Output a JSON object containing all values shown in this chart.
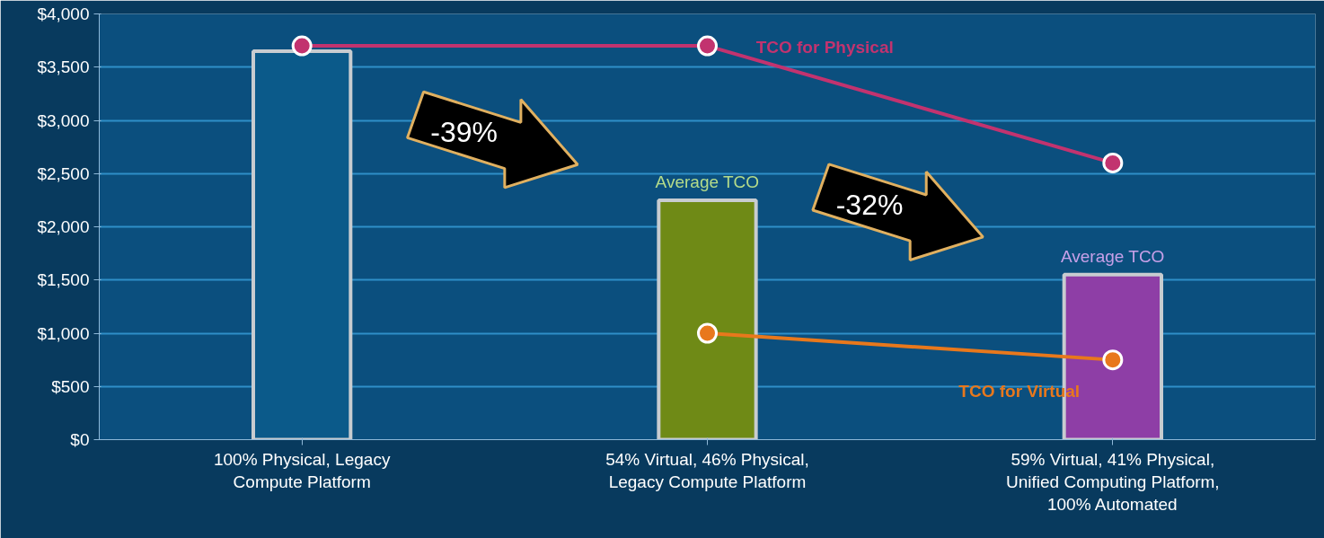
{
  "chart_data": {
    "type": "bar",
    "categories": [
      "100% Physical, Legacy\nCompute Platform",
      "54% Virtual, 46% Physical,\nLegacy Compute Platform",
      "59% Virtual, 41% Physical,\nUnified Computing Platform,\n100% Automated"
    ],
    "series": [
      {
        "colors": [
          "#0b5a8a",
          "#6f8a16",
          "#8e3ea6"
        ],
        "values": [
          3650,
          2250,
          1550
        ]
      },
      {
        "type": "line",
        "name": "TCO for Physical",
        "color": "#c2336f",
        "values": [
          3700,
          3700,
          2600
        ]
      },
      {
        "type": "line",
        "name": "TCO for Virtual",
        "color": "#e8781c",
        "values": [
          null,
          1000,
          750
        ]
      }
    ],
    "ylim": [
      0,
      4000
    ],
    "yticks": [
      {
        "value": 0,
        "label": "$0"
      },
      {
        "value": 500,
        "label": "$500"
      },
      {
        "value": 1000,
        "label": "$1,000"
      },
      {
        "value": 1500,
        "label": "$1,500"
      },
      {
        "value": 2000,
        "label": "$2,000"
      },
      {
        "value": 2500,
        "label": "$2,500"
      },
      {
        "value": 3000,
        "label": "$3,000"
      },
      {
        "value": 3500,
        "label": "$3,500"
      },
      {
        "value": 4000,
        "label": "$4,000"
      }
    ],
    "annotations": [
      {
        "text": "Average TCO",
        "x": "54% Virtual, 46% Physical,\nLegacy Compute Platform",
        "y": 2250
      },
      {
        "text": "Average TCO",
        "x": "59% Virtual, 41% Physical,\nUnified Computing Platform,\n100% Automated",
        "y": 1550
      },
      "-39%",
      "-32%"
    ],
    "grid": "y",
    "marker": "circle"
  }
}
